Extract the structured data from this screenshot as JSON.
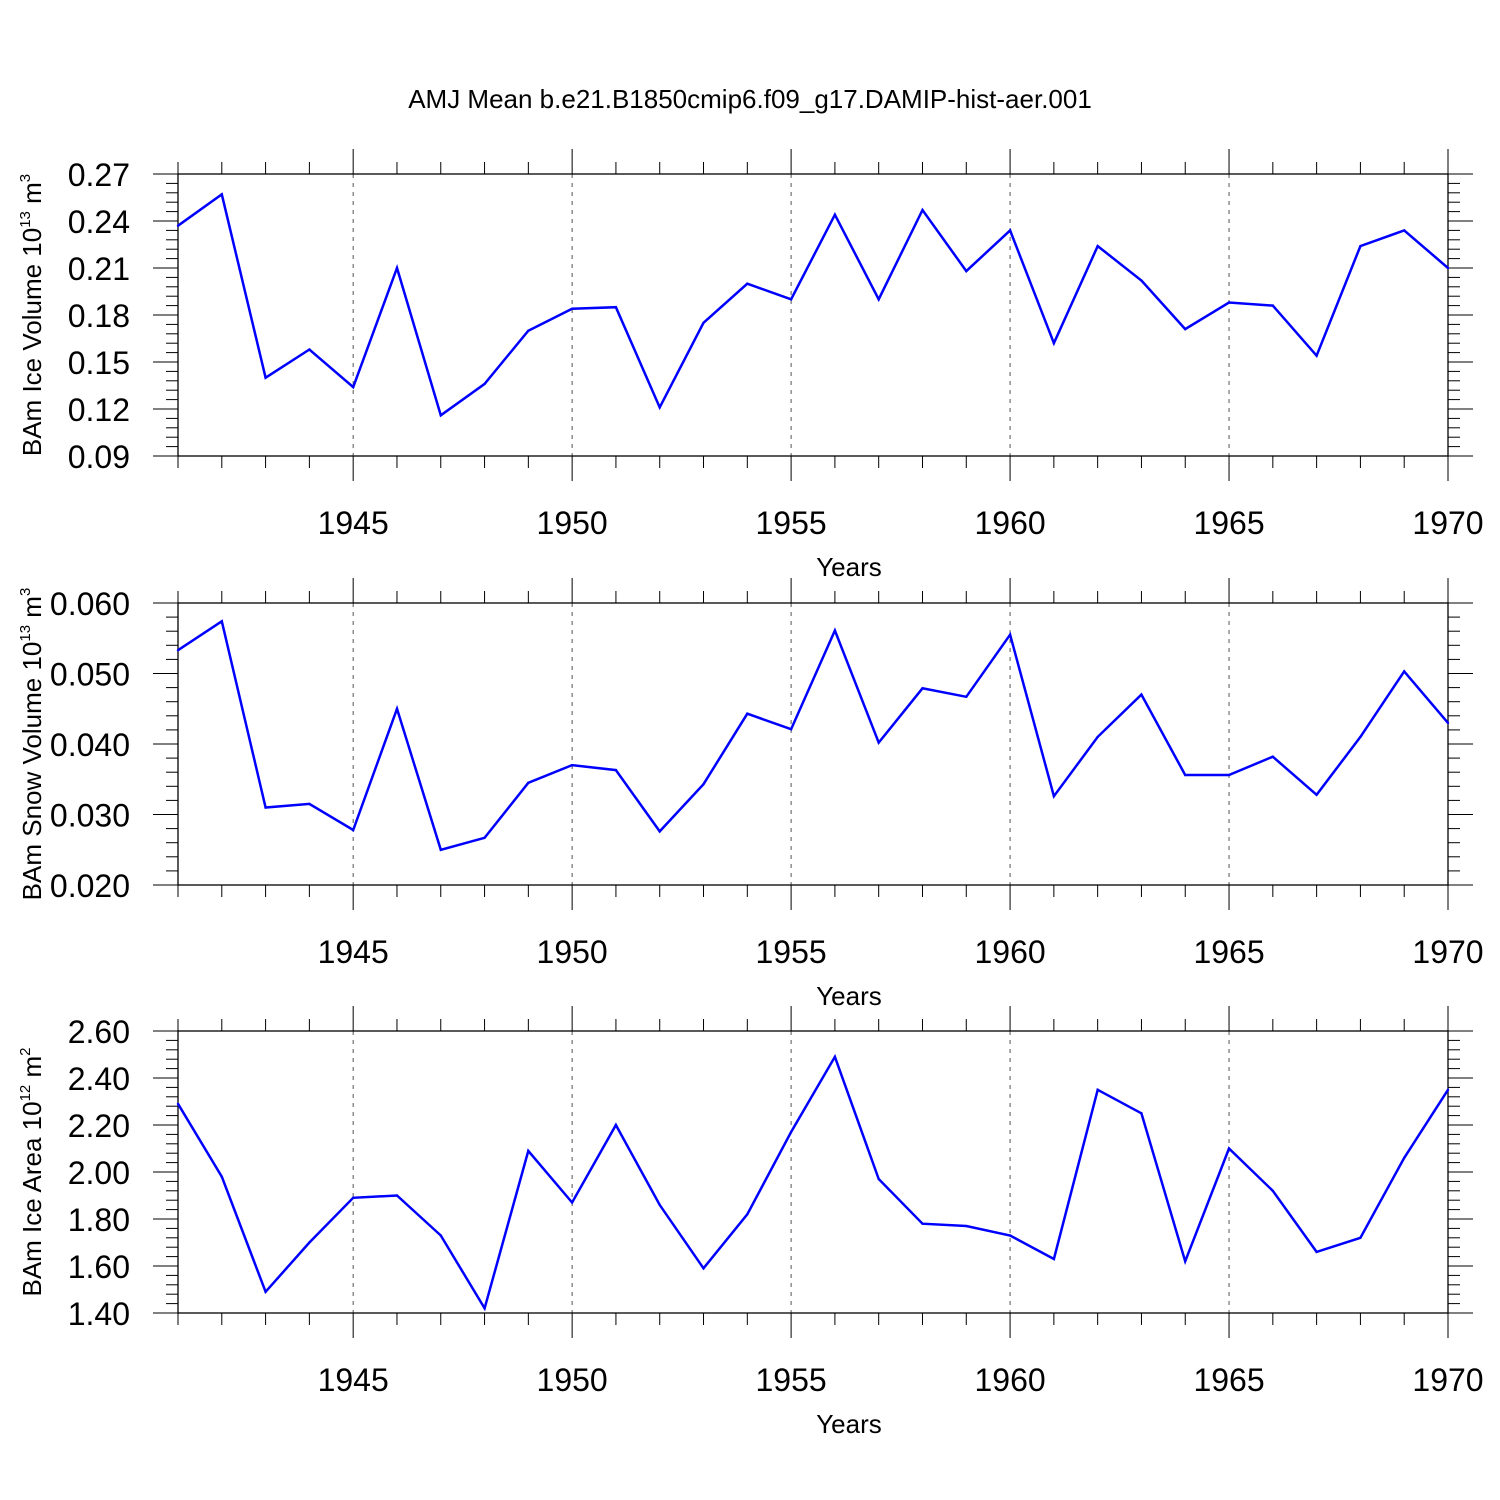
{
  "title": "AMJ Mean b.e21.B1850cmip6.f09_g17.DAMIP-hist-aer.001",
  "line_color": "#0000ff",
  "chart_data": [
    {
      "type": "line",
      "title": "AMJ Mean b.e21.B1850cmip6.f09_g17.DAMIP-hist-aer.001",
      "ylabel_main": "BAm Ice Volume 10",
      "ylabel_exp": "13",
      "ylabel_unit": " m",
      "ylabel_unit_exp": "3",
      "xlabel": "Years",
      "xlim": [
        1941,
        1970
      ],
      "ylim": [
        0.09,
        0.27
      ],
      "yticks": [
        "0.09",
        "0.12",
        "0.15",
        "0.18",
        "0.21",
        "0.24",
        "0.27"
      ],
      "xticks": [
        "1945",
        "1950",
        "1955",
        "1960",
        "1965",
        "1970"
      ],
      "grid": "vertical dashed at major x ticks",
      "x": [
        1941,
        1942,
        1943,
        1944,
        1945,
        1946,
        1947,
        1948,
        1949,
        1950,
        1951,
        1952,
        1953,
        1954,
        1955,
        1956,
        1957,
        1958,
        1959,
        1960,
        1961,
        1962,
        1963,
        1964,
        1965,
        1966,
        1967,
        1968,
        1969,
        1970
      ],
      "values": [
        0.237,
        0.257,
        0.14,
        0.158,
        0.134,
        0.21,
        0.116,
        0.136,
        0.17,
        0.184,
        0.185,
        0.121,
        0.175,
        0.2,
        0.19,
        0.244,
        0.19,
        0.247,
        0.208,
        0.234,
        0.162,
        0.224,
        0.202,
        0.171,
        0.188,
        0.186,
        0.154,
        0.224,
        0.234,
        0.21
      ]
    },
    {
      "type": "line",
      "ylabel_main": "BAm Snow Volume 10",
      "ylabel_exp": "13",
      "ylabel_unit": " m",
      "ylabel_unit_exp": "3",
      "xlabel": "Years",
      "xlim": [
        1941,
        1970
      ],
      "ylim": [
        0.02,
        0.06
      ],
      "yticks": [
        "0.020",
        "0.030",
        "0.040",
        "0.050",
        "0.060"
      ],
      "xticks": [
        "1945",
        "1950",
        "1955",
        "1960",
        "1965",
        "1970"
      ],
      "grid": "vertical dashed at major x ticks",
      "x": [
        1941,
        1942,
        1943,
        1944,
        1945,
        1946,
        1947,
        1948,
        1949,
        1950,
        1951,
        1952,
        1953,
        1954,
        1955,
        1956,
        1957,
        1958,
        1959,
        1960,
        1961,
        1962,
        1963,
        1964,
        1965,
        1966,
        1967,
        1968,
        1969,
        1970
      ],
      "values": [
        0.0533,
        0.0574,
        0.031,
        0.0315,
        0.0278,
        0.045,
        0.025,
        0.0267,
        0.0345,
        0.037,
        0.0363,
        0.0276,
        0.0343,
        0.0443,
        0.0421,
        0.0561,
        0.0402,
        0.0479,
        0.0467,
        0.0555,
        0.0326,
        0.041,
        0.047,
        0.0356,
        0.0356,
        0.0382,
        0.0328,
        0.041,
        0.0503,
        0.043
      ]
    },
    {
      "type": "line",
      "ylabel_main": "BAm Ice Area 10",
      "ylabel_exp": "12",
      "ylabel_unit": " m",
      "ylabel_unit_exp": "2",
      "xlabel": "Years",
      "xlim": [
        1941,
        1970
      ],
      "ylim": [
        1.4,
        2.6
      ],
      "yticks": [
        "1.40",
        "1.60",
        "1.80",
        "2.00",
        "2.20",
        "2.40",
        "2.60"
      ],
      "xticks": [
        "1945",
        "1950",
        "1955",
        "1960",
        "1965",
        "1970"
      ],
      "grid": "vertical dashed at major x ticks",
      "x": [
        1941,
        1942,
        1943,
        1944,
        1945,
        1946,
        1947,
        1948,
        1949,
        1950,
        1951,
        1952,
        1953,
        1954,
        1955,
        1956,
        1957,
        1958,
        1959,
        1960,
        1961,
        1962,
        1963,
        1964,
        1965,
        1966,
        1967,
        1968,
        1969,
        1970
      ],
      "values": [
        2.29,
        1.98,
        1.49,
        1.7,
        1.89,
        1.9,
        1.73,
        1.42,
        2.09,
        1.87,
        2.2,
        1.86,
        1.59,
        1.82,
        2.17,
        2.49,
        1.97,
        1.78,
        1.77,
        1.73,
        1.63,
        2.35,
        2.25,
        1.62,
        2.1,
        1.92,
        1.66,
        1.72,
        2.06,
        2.35
      ]
    }
  ]
}
